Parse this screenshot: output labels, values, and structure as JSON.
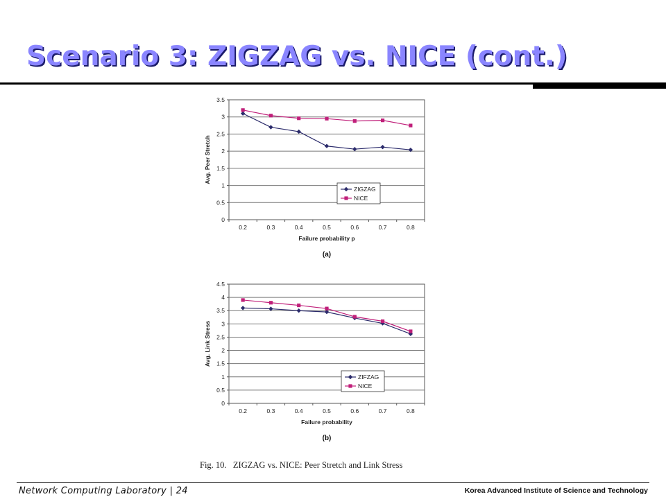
{
  "slide": {
    "title": "Scenario 3: ZIGZAG vs. NICE (cont.)",
    "caption": "Fig. 10.   ZIGZAG vs. NICE: Peer Stretch and Link Stress",
    "footer_left": "Network Computing Laboratory | 24",
    "footer_right": "Korea Advanced Institute of Science and Technology"
  },
  "chart_data": [
    {
      "type": "line",
      "panel_label": "(a)",
      "xlabel": "Failure probability p",
      "ylabel": "Avg. Peer Stretch",
      "categories": [
        "0.2",
        "0.3",
        "0.4",
        "0.5",
        "0.6",
        "0.7",
        "0.8"
      ],
      "ylim": [
        0,
        3.5
      ],
      "yticks": [
        "0",
        "0.5",
        "1",
        "1.5",
        "2",
        "2.5",
        "3",
        "3.5"
      ],
      "grid": true,
      "legend": "inside-lower-right",
      "series": [
        {
          "name": "ZIGZAG",
          "marker": "diamond",
          "color": "#2b2b6b",
          "values": [
            3.1,
            2.7,
            2.57,
            2.15,
            2.06,
            2.12,
            2.04
          ]
        },
        {
          "name": "NICE",
          "marker": "square",
          "color": "#c01f7a",
          "values": [
            3.2,
            3.04,
            2.96,
            2.95,
            2.88,
            2.9,
            2.75
          ]
        }
      ]
    },
    {
      "type": "line",
      "panel_label": "(b)",
      "xlabel": "Failure probability",
      "ylabel": "Avg. Link Stress",
      "categories": [
        "0.2",
        "0.3",
        "0.4",
        "0.5",
        "0.6",
        "0.7",
        "0.8"
      ],
      "ylim": [
        0,
        4.5
      ],
      "yticks": [
        "0",
        "0.5",
        "1",
        "1.5",
        "2",
        "2.5",
        "3",
        "3.5",
        "4",
        "4.5"
      ],
      "grid": true,
      "legend": "inside-lower-right",
      "series": [
        {
          "name": "ZIFZAG",
          "marker": "diamond",
          "color": "#2b2b6b",
          "values": [
            3.6,
            3.57,
            3.5,
            3.45,
            3.22,
            3.02,
            2.62
          ]
        },
        {
          "name": "NICE",
          "marker": "square",
          "color": "#c01f7a",
          "values": [
            3.9,
            3.8,
            3.7,
            3.58,
            3.27,
            3.1,
            2.72
          ]
        }
      ]
    }
  ]
}
